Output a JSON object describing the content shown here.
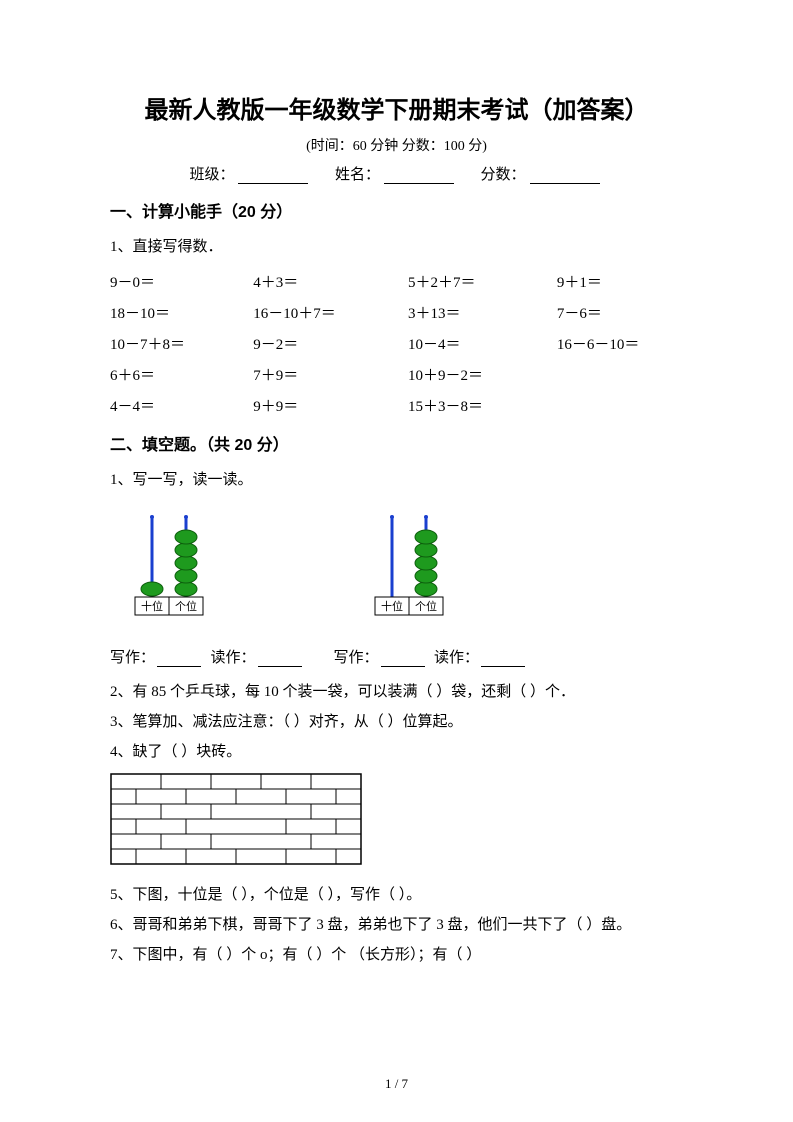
{
  "title": "最新人教版一年级数学下册期末考试（加答案）",
  "subtitle": "(时间：60 分钟   分数：100 分)",
  "fill": {
    "class_label": "班级：",
    "name_label": "姓名：",
    "score_label": "分数："
  },
  "section1": {
    "title": "一、计算小能手（20 分）",
    "q1_label": "1、直接写得数．",
    "rows": [
      [
        "9－0＝",
        "4＋3＝",
        "5＋2＋7＝",
        "9＋1＝"
      ],
      [
        "18－10＝",
        "16－10＋7＝",
        "3＋13＝",
        "7－6＝"
      ],
      [
        "10－7＋8＝",
        "9－2＝",
        "10－4＝",
        "16－6－10＝"
      ],
      [
        "6＋6＝",
        "7＋9＝",
        "10＋9－2＝",
        ""
      ],
      [
        "4－4＝",
        "9＋9＝",
        "15＋3－8＝",
        ""
      ]
    ]
  },
  "section2": {
    "title": "二、填空题。（共 20 分）",
    "q1": "1、写一写，读一读。",
    "abaci": [
      {
        "tens_beads": 1,
        "units_beads": 5,
        "tens_label": "十位",
        "units_label": "个位"
      },
      {
        "tens_beads": 0,
        "units_beads": 5,
        "tens_label": "十位",
        "units_label": "个位"
      }
    ],
    "write_label": "写作：",
    "read_label": "读作：",
    "q2": "2、有 85 个乒乓球，每 10 个装一袋，可以装满（      ）袋，还剩（      ）个．",
    "q3": "3、笔算加、减法应注意：（      ）对齐，从（      ）位算起。",
    "q4": "4、缺了（      ）块砖。",
    "q5": "5、下图，十位是（      ），个位是（      ），写作（      ）。",
    "q6": "6、哥哥和弟弟下棋，哥哥下了 3 盘，弟弟也下了 3 盘，他们一共下了（      ）盘。",
    "q7": "7、下图中，有（      ）个 o；有（      ）个 （长方形）；有（      ）"
  },
  "brick": {
    "rows": 6,
    "cols_full": 5,
    "brick_w": 50,
    "brick_h": 15,
    "stroke": "#000000",
    "fill": "#ffffff"
  },
  "abacus_style": {
    "rod_color": "#1a3fcf",
    "bead_fill": "#1e9a1e",
    "bead_stroke": "#0d5f0d",
    "frame_stroke": "#000000",
    "base_fill": "#ffffff",
    "label_fontsize": 11
  },
  "page_number": "1 / 7"
}
